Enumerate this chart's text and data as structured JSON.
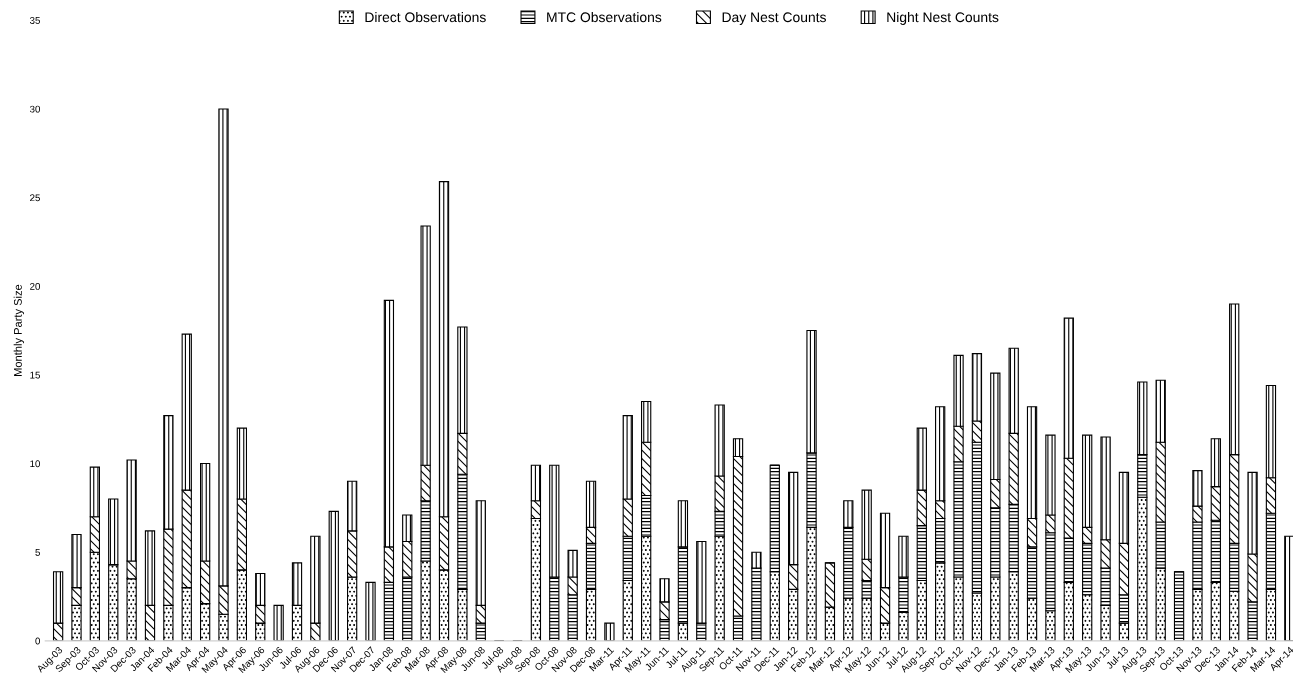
{
  "chart_data": {
    "type": "bar",
    "stacked": true,
    "ylabel": "Monthly Party Size",
    "categories": [
      "Aug-03",
      "Sep-03",
      "Oct-03",
      "Nov-03",
      "Dec-03",
      "Jan-04",
      "Feb-04",
      "Mar-04",
      "Apr-04",
      "May-04",
      "Apr-06",
      "May-06",
      "Jun-06",
      "Jul-06",
      "Aug-06",
      "Dec-06",
      "Nov-07",
      "Dec-07",
      "Jan-08",
      "Feb-08",
      "Mar-08",
      "Apr-08",
      "May-08",
      "Jun-08",
      "Jul-08",
      "Aug-08",
      "Sep-08",
      "Oct-08",
      "Nov-08",
      "Dec-08",
      "Mar-11",
      "Apr-11",
      "May-11",
      "Jun-11",
      "Jul-11",
      "Aug-11",
      "Sep-11",
      "Oct-11",
      "Nov-11",
      "Dec-11",
      "Jan-12",
      "Feb-12",
      "Mar-12",
      "Apr-12",
      "May-12",
      "Jun-12",
      "Jul-12",
      "Aug-12",
      "Sep-12",
      "Oct-12",
      "Nov-12",
      "Dec-12",
      "Jan-13",
      "Feb-13",
      "Mar-13",
      "Apr-13",
      "May-13",
      "Jun-13",
      "Jul-13",
      "Aug-13",
      "Sep-13",
      "Oct-13",
      "Nov-13",
      "Dec-13",
      "Jan-14",
      "Feb-14",
      "Mar-14",
      "Apr-14"
    ],
    "series": [
      {
        "name": "Direct Observations",
        "color": "#000000",
        "values": [
          0,
          2,
          5,
          4.3,
          3.5,
          0,
          2,
          3,
          2.1,
          1.5,
          4,
          1,
          0,
          2,
          0,
          0,
          3.6,
          0,
          0,
          0,
          4.5,
          4,
          2.9,
          0,
          0,
          0,
          6.9,
          0,
          0,
          2.9,
          0,
          3.4,
          5.9,
          0,
          1,
          0,
          5.9,
          0,
          0,
          3.9,
          2.9,
          6.4,
          1.9,
          2.4,
          2.4,
          1,
          1.6,
          3.4,
          4.4,
          3.6,
          2.7,
          3.6,
          3.9,
          2.4,
          1.7,
          3.3,
          2.6,
          2,
          1,
          8.1,
          4.1,
          0,
          2.9,
          3.3,
          2.8,
          0,
          2.9,
          0
        ]
      },
      {
        "name": "MTC Observations",
        "color": "#000000",
        "values": [
          0,
          0,
          0,
          0,
          0,
          0,
          0,
          0,
          0,
          0,
          0,
          0,
          0,
          0,
          0,
          0,
          0,
          0,
          3.3,
          3.6,
          3.4,
          0,
          6.5,
          1,
          0,
          0,
          0,
          3.6,
          2.6,
          2.6,
          0,
          2.5,
          2.3,
          1.2,
          4.3,
          1,
          1.4,
          1.4,
          4.1,
          6,
          0,
          4.2,
          0,
          4,
          1,
          0,
          2,
          3.1,
          2.5,
          6.5,
          8.5,
          3.9,
          3.8,
          2.9,
          4.4,
          2.5,
          2.9,
          2.1,
          1.6,
          2.4,
          2.6,
          3.9,
          3.8,
          3.5,
          2.7,
          2.2,
          4.3,
          0
        ]
      },
      {
        "name": "Day Nest Counts",
        "color": "#000000",
        "values": [
          1,
          1,
          2,
          0,
          1,
          2,
          4.3,
          5.5,
          2.4,
          1.6,
          4,
          1,
          0,
          0,
          1,
          0,
          2.6,
          0,
          2,
          2,
          2,
          3,
          2.3,
          1,
          0,
          0,
          1,
          0,
          1,
          0.9,
          0,
          2.1,
          3,
          1,
          0,
          0,
          2,
          9,
          0,
          0,
          1.4,
          0,
          2.5,
          0,
          1.2,
          2,
          0,
          2,
          1,
          2,
          1.2,
          1.6,
          4,
          1.6,
          1,
          4.5,
          0.9,
          1.6,
          2.9,
          0,
          4.5,
          0,
          0.9,
          1.9,
          5,
          2.7,
          2,
          0
        ]
      },
      {
        "name": "Night Nest Counts",
        "color": "#000000",
        "values": [
          2.9,
          3,
          2.8,
          3.7,
          5.7,
          4.2,
          6.4,
          8.8,
          5.5,
          26.9,
          4,
          1.8,
          2,
          2.4,
          4.9,
          7.3,
          2.8,
          3.3,
          13.9,
          1.5,
          13.5,
          18.9,
          6,
          5.9,
          0,
          0,
          2,
          6.3,
          1.5,
          2.6,
          1,
          4.7,
          2.3,
          1.3,
          2.6,
          4.6,
          4,
          1,
          0.9,
          0,
          5.2,
          6.9,
          0,
          1.5,
          3.9,
          4.2,
          2.3,
          3.5,
          5.3,
          4,
          3.8,
          6,
          4.8,
          6.3,
          4.5,
          7.9,
          5.2,
          5.8,
          4,
          4.1,
          3.5,
          0,
          2,
          2.7,
          8.5,
          4.6,
          5.2,
          5.9
        ]
      }
    ],
    "ylim": [
      0,
      35
    ],
    "yticks": [
      0,
      5,
      10,
      15,
      20,
      25,
      30,
      35
    ],
    "grid": false,
    "legend": "top"
  }
}
